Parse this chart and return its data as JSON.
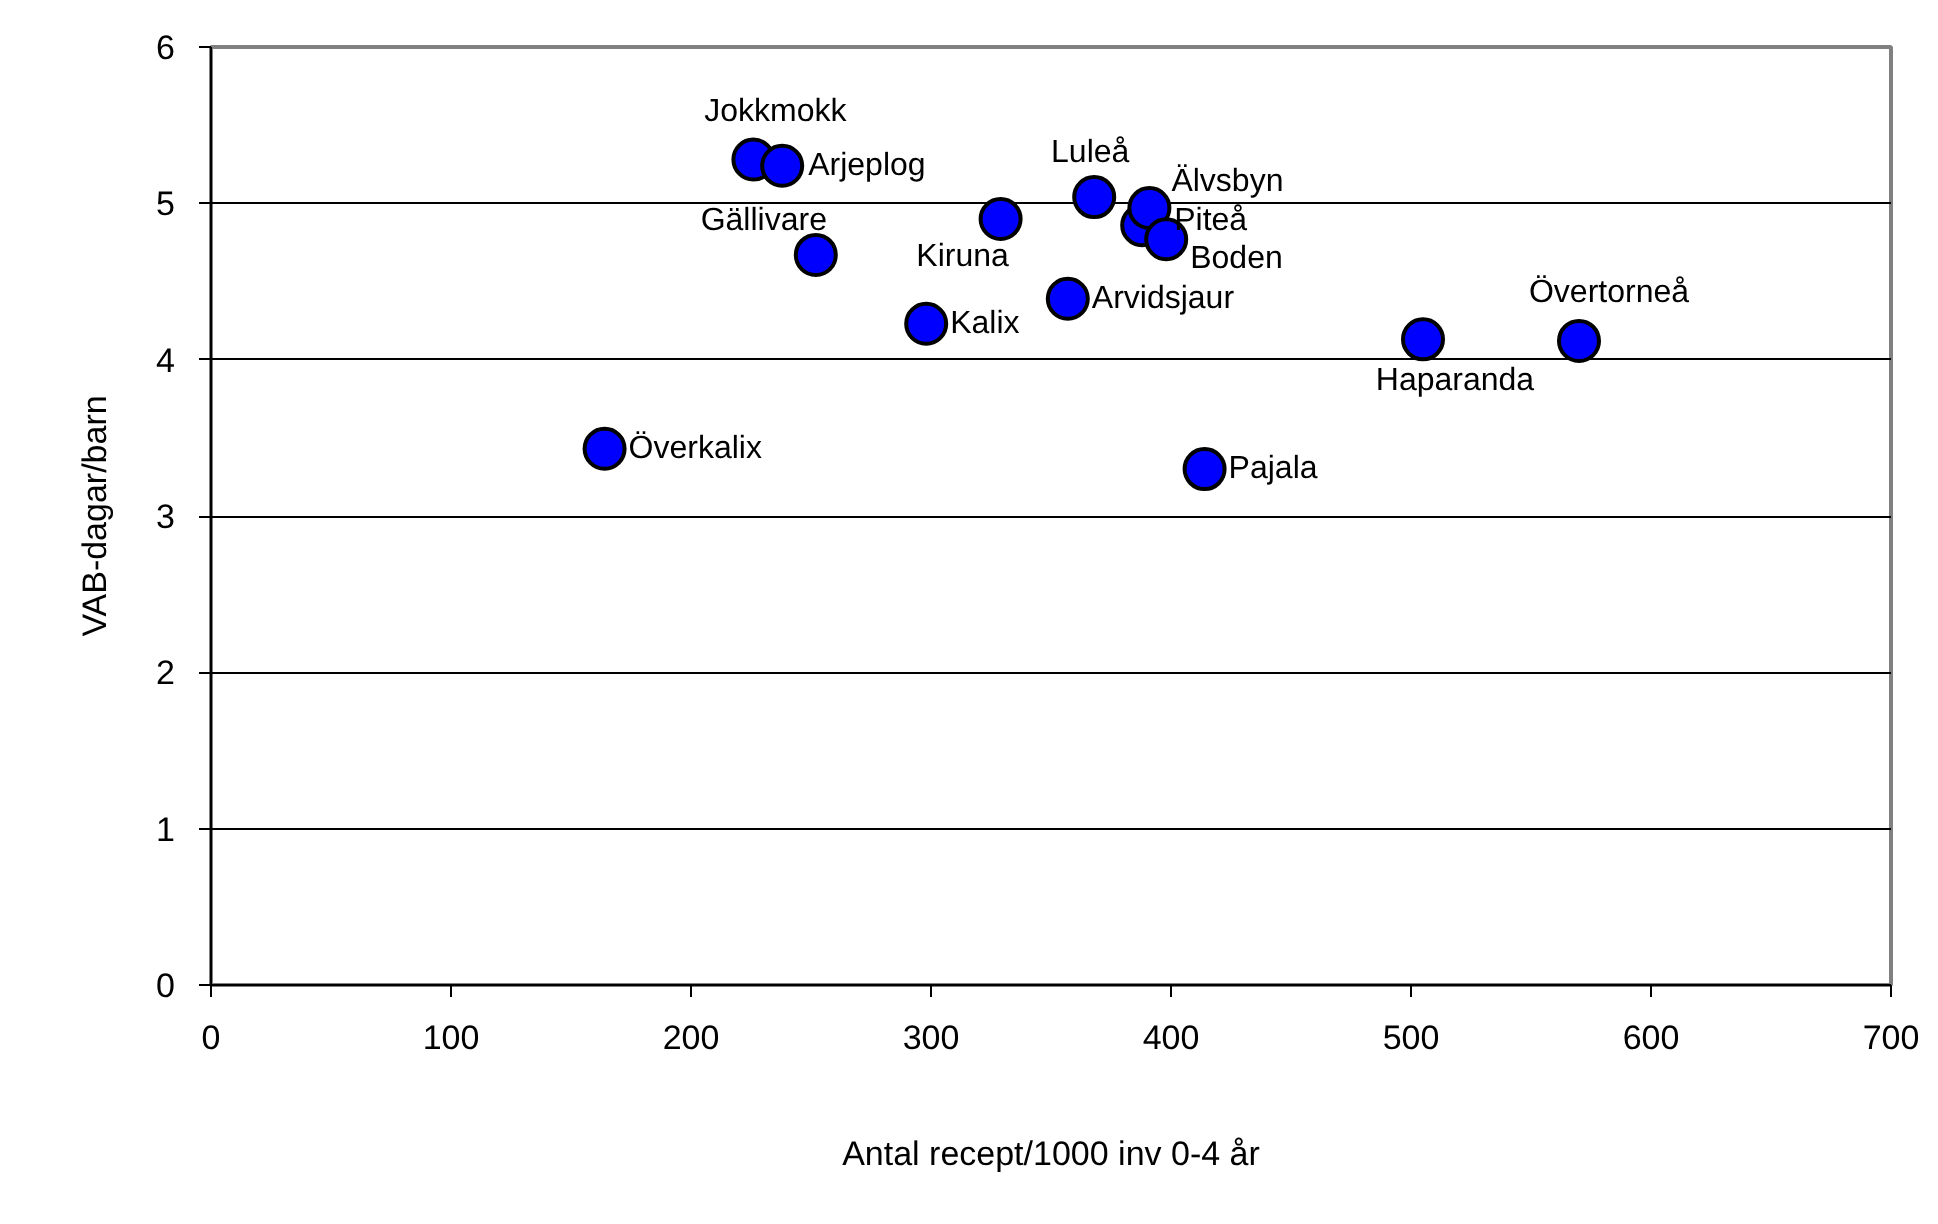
{
  "chart_data": {
    "type": "scatter",
    "xlabel": "Antal recept/1000 inv 0-4 år",
    "ylabel": "VAB-dagar/barn",
    "xlim": [
      0,
      700
    ],
    "xticks": [
      0,
      100,
      200,
      300,
      400,
      500,
      600,
      700
    ],
    "ylim": [
      0,
      6
    ],
    "yticks": [
      0,
      1,
      2,
      3,
      4,
      5,
      6
    ],
    "grid": "y",
    "marker": "circle",
    "series": [
      {
        "color": "#0000ff",
        "x": [
          226,
          238,
          252,
          164,
          298,
          329,
          368,
          357,
          388,
          391,
          398,
          414,
          505,
          570
        ],
        "values": [
          5.28,
          5.24,
          4.67,
          3.43,
          4.23,
          4.9,
          5.04,
          4.39,
          4.86,
          4.97,
          4.77,
          3.3,
          4.13,
          4.12
        ]
      }
    ],
    "annotations": [
      {
        "text": "Jokkmokk",
        "x": 226,
        "y": 5.28
      },
      {
        "text": "Arjeplog",
        "x": 238,
        "y": 5.24
      },
      {
        "text": "Gällivare",
        "x": 252,
        "y": 4.67
      },
      {
        "text": "Överkalix",
        "x": 164,
        "y": 3.43
      },
      {
        "text": "Kalix",
        "x": 298,
        "y": 4.23
      },
      {
        "text": "Kiruna",
        "x": 329,
        "y": 4.9
      },
      {
        "text": "Luleå",
        "x": 368,
        "y": 5.04
      },
      {
        "text": "Arvidsjaur",
        "x": 357,
        "y": 4.39
      },
      {
        "text": "Piteå",
        "x": 388,
        "y": 4.86
      },
      {
        "text": "Älvsbyn",
        "x": 391,
        "y": 4.97
      },
      {
        "text": "Boden",
        "x": 398,
        "y": 4.77
      },
      {
        "text": "Pajala",
        "x": 414,
        "y": 3.3
      },
      {
        "text": "Haparanda",
        "x": 505,
        "y": 4.13
      },
      {
        "text": "Övertorneå",
        "x": 570,
        "y": 4.12
      }
    ]
  }
}
